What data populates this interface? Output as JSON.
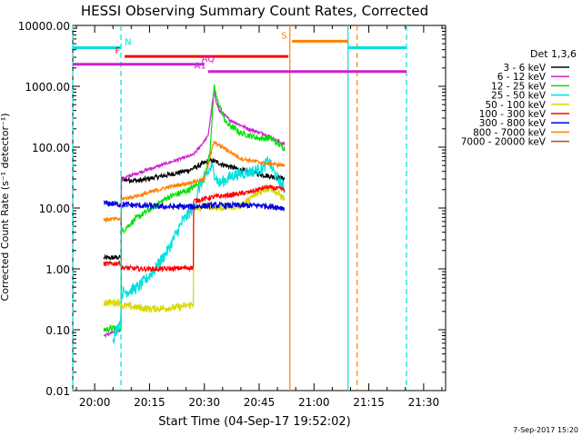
{
  "chart_data": {
    "type": "line",
    "title": "HESSI Observing Summary Count Rates, Corrected",
    "xlabel": "Start Time (04-Sep-17 19:52:02)",
    "ylabel": "Corrected Count Rate (s⁻¹ detector⁻¹)",
    "y_scale": "log",
    "ylim": [
      0.01,
      10000
    ],
    "y_ticks": [
      "0.01",
      "0.10",
      "1.00",
      "10.00",
      "100.00",
      "1000.00",
      "10000.00"
    ],
    "x_range_minutes": [
      -6,
      96
    ],
    "x_ticks": [
      "20:00",
      "20:15",
      "20:30",
      "20:45",
      "21:00",
      "21:15",
      "21:30"
    ],
    "x_ticks_minutes": [
      0,
      15,
      30,
      45,
      60,
      75,
      90
    ],
    "grid": false,
    "legend_title": "Det 1,3,6",
    "legend_position": "right",
    "footer": "7-Sep-2017 15:20",
    "series": [
      {
        "name": "3 - 6 keV",
        "color": "#000000",
        "noise": 0.04,
        "points": [
          [
            2.5,
            1.5
          ],
          [
            7.2,
            1.55
          ],
          [
            7.3,
            30
          ],
          [
            12,
            28
          ],
          [
            20,
            35
          ],
          [
            26,
            42
          ],
          [
            30,
            55
          ],
          [
            32,
            60
          ],
          [
            33,
            58
          ],
          [
            35,
            52
          ],
          [
            40,
            42
          ],
          [
            45,
            36
          ],
          [
            52,
            30
          ]
        ]
      },
      {
        "name": "6 - 12 keV",
        "color": "#d020d0",
        "noise": 0.025,
        "points": [
          [
            2.5,
            0.08
          ],
          [
            7.2,
            0.1
          ],
          [
            7.3,
            30
          ],
          [
            12,
            38
          ],
          [
            20,
            55
          ],
          [
            27,
            75
          ],
          [
            31,
            150
          ],
          [
            32.6,
            800
          ],
          [
            34,
            400
          ],
          [
            37,
            280
          ],
          [
            42,
            200
          ],
          [
            47,
            160
          ],
          [
            52,
            110
          ]
        ]
      },
      {
        "name": "12 - 25 keV",
        "color": "#00e000",
        "noise": 0.05,
        "points": [
          [
            2.5,
            0.1
          ],
          [
            7.2,
            0.11
          ],
          [
            7.3,
            4
          ],
          [
            11,
            6.5
          ],
          [
            20,
            15
          ],
          [
            26,
            20
          ],
          [
            30,
            30
          ],
          [
            31.5,
            80
          ],
          [
            32.7,
            1000
          ],
          [
            33.5,
            600
          ],
          [
            36,
            250
          ],
          [
            40,
            170
          ],
          [
            45,
            140
          ],
          [
            48,
            140
          ],
          [
            52,
            95
          ]
        ]
      },
      {
        "name": "25 - 50 keV",
        "color": "#00e0e0",
        "noise": 0.1,
        "points": [
          [
            5,
            0.07
          ],
          [
            7.2,
            0.15
          ],
          [
            7.3,
            0.4
          ],
          [
            12,
            0.5
          ],
          [
            16,
            0.9
          ],
          [
            20,
            2
          ],
          [
            24,
            6
          ],
          [
            27,
            10
          ],
          [
            29,
            25
          ],
          [
            32,
            48
          ],
          [
            34,
            25
          ],
          [
            38,
            35
          ],
          [
            43,
            40
          ],
          [
            46,
            45
          ],
          [
            47.5,
            60
          ],
          [
            50,
            30
          ],
          [
            52,
            20
          ]
        ]
      },
      {
        "name": "50 - 100 keV",
        "color": "#d8d800",
        "noise": 0.06,
        "points": [
          [
            2.5,
            0.28
          ],
          [
            7.2,
            0.28
          ],
          [
            7.3,
            0.25
          ],
          [
            15,
            0.22
          ],
          [
            22,
            0.23
          ],
          [
            27,
            0.26
          ],
          [
            27.1,
            9
          ],
          [
            30,
            11
          ],
          [
            34,
            10
          ],
          [
            40,
            11
          ],
          [
            45,
            18
          ],
          [
            48,
            22
          ],
          [
            52,
            14
          ]
        ]
      },
      {
        "name": "100 - 300 keV",
        "color": "#ff0000",
        "noise": 0.04,
        "points": [
          [
            2.5,
            1.2
          ],
          [
            7.2,
            1.25
          ],
          [
            7.3,
            1.05
          ],
          [
            12,
            1.0
          ],
          [
            20,
            1.0
          ],
          [
            27,
            1.05
          ],
          [
            27.1,
            13
          ],
          [
            32,
            15
          ],
          [
            36,
            16
          ],
          [
            42,
            18
          ],
          [
            47,
            22
          ],
          [
            52,
            20
          ]
        ]
      },
      {
        "name": "300 - 800 keV",
        "color": "#0000e0",
        "noise": 0.05,
        "points": [
          [
            2.5,
            12
          ],
          [
            12,
            11
          ],
          [
            20,
            10.5
          ],
          [
            27,
            10.5
          ],
          [
            32,
            11
          ],
          [
            40,
            11
          ],
          [
            46,
            11
          ],
          [
            52,
            10
          ]
        ]
      },
      {
        "name": "800 - 7000 keV",
        "color": "#ff8000",
        "noise": 0.03,
        "points": [
          [
            2.5,
            6.5
          ],
          [
            7.2,
            6.6
          ],
          [
            7.3,
            14
          ],
          [
            12,
            16
          ],
          [
            20,
            22
          ],
          [
            26,
            26
          ],
          [
            30,
            30
          ],
          [
            32.6,
            120
          ],
          [
            35,
            100
          ],
          [
            40,
            65
          ],
          [
            46,
            55
          ],
          [
            52,
            50
          ]
        ]
      },
      {
        "name": "7000 - 20000 keV",
        "color": "#a0522d",
        "noise": 0.0,
        "points": []
      }
    ],
    "vertical_lines": [
      {
        "minute": -6,
        "color": "#00e0e0",
        "dash": true
      },
      {
        "minute": 7.2,
        "color": "#00e0e0",
        "dash": true
      },
      {
        "minute": 53.4,
        "color": "#ff8000",
        "dash": false
      },
      {
        "minute": 69.3,
        "color": "#00e0e0",
        "dash": false
      },
      {
        "minute": 71.8,
        "color": "#ff8000",
        "dash": true
      },
      {
        "minute": 85.3,
        "color": "#00e0e0",
        "dash": true
      }
    ],
    "flag_bars": [
      {
        "label": "N",
        "color": "#00e0e0",
        "y": 4300,
        "segments": [
          [
            -6,
            7.2
          ],
          [
            69.3,
            85.3
          ]
        ],
        "label_minute": 8.2,
        "label_side": "right"
      },
      {
        "label": "F",
        "color": "#ff0000",
        "y": 3100,
        "segments": [
          [
            8.2,
            53
          ]
        ],
        "label_minute": 7.0,
        "label_side": "left"
      },
      {
        "label": "S",
        "color": "#ff8000",
        "y": 5500,
        "segments": [
          [
            54,
            69.3
          ]
        ],
        "label_minute": 52.6,
        "label_side": "left"
      },
      {
        "label": "AQ",
        "color": "#d020d0",
        "y": 2300,
        "segments": [
          [
            -6,
            30
          ]
        ],
        "label_minute": 31,
        "label_side": "center"
      },
      {
        "label": "A1",
        "color": "#d020d0",
        "y": 1750,
        "segments": [
          [
            31,
            85.3
          ]
        ],
        "label_minute": 30.5,
        "label_side": "left"
      }
    ]
  }
}
